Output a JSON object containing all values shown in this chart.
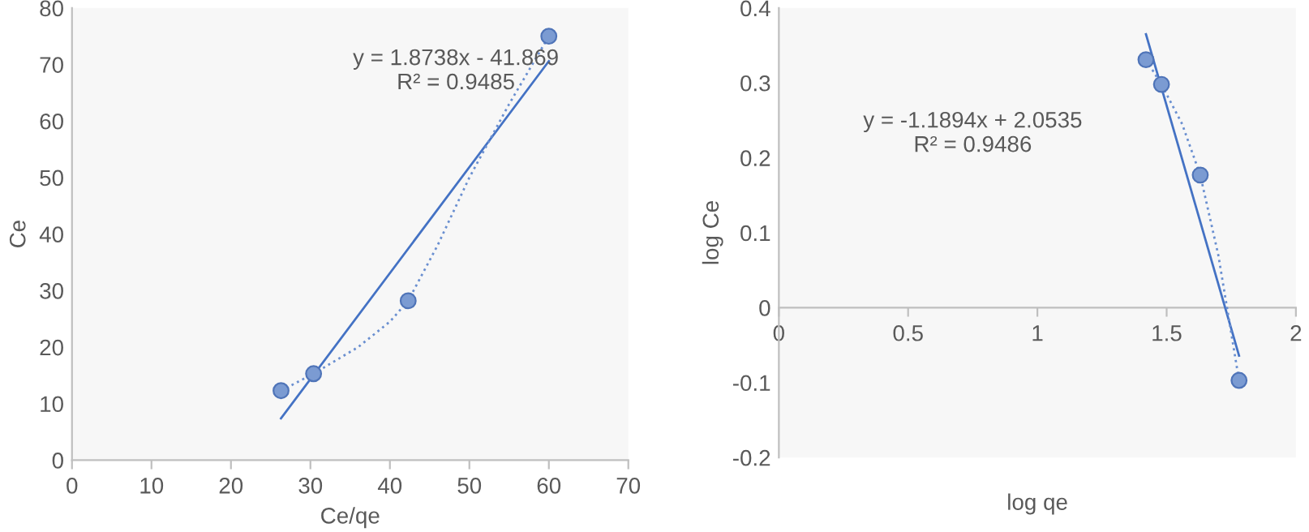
{
  "chart_data": [
    {
      "type": "scatter",
      "xlabel": "Ce/qe",
      "ylabel": "Ce",
      "xlim": [
        0,
        70
      ],
      "xticks": [
        0,
        10,
        20,
        30,
        40,
        50,
        60,
        70
      ],
      "ylim": [
        0,
        80
      ],
      "yticks": [
        0,
        10,
        20,
        30,
        40,
        50,
        60,
        70,
        80
      ],
      "grid": false,
      "legend": false,
      "annotations": [
        "y = 1.8738x - 41.869\nR² = 0.9485"
      ],
      "series": [
        {
          "marker": "circle",
          "color": "#7b9bd2",
          "x": [
            26.3,
            30.4,
            42.3,
            60
          ],
          "values": [
            12.3,
            15.3,
            28.2,
            75
          ]
        },
        {
          "type": "line",
          "line_style": "solid",
          "marker": "none",
          "color": "#4472c4",
          "x": [
            26.3,
            60
          ],
          "values": [
            7.4,
            70.6
          ]
        },
        {
          "type": "line",
          "line_style": "dotted",
          "marker": "none",
          "color": "#6a8fd0",
          "x": [
            26.3,
            30.4,
            36,
            40,
            42.3,
            46,
            50,
            55,
            60
          ],
          "values": [
            12.3,
            15.3,
            20,
            24.5,
            28.2,
            38,
            50,
            63,
            75
          ]
        }
      ]
    },
    {
      "type": "scatter",
      "xlabel": "log qe",
      "ylabel": "log Ce",
      "xlim": [
        0,
        2
      ],
      "xticks": [
        0,
        0.5,
        1,
        1.5,
        2
      ],
      "ylim": [
        -0.2,
        0.4
      ],
      "yticks": [
        -0.2,
        -0.1,
        0,
        0.1,
        0.2,
        0.3,
        0.4
      ],
      "grid": false,
      "legend": false,
      "annotations": [
        "y = -1.1894x + 2.0535\nR² = 0.9486"
      ],
      "series": [
        {
          "marker": "circle",
          "color": "#7b9bd2",
          "x": [
            1.42,
            1.48,
            1.63,
            1.78
          ],
          "values": [
            0.331,
            0.298,
            0.177,
            -0.097
          ]
        },
        {
          "type": "line",
          "line_style": "solid",
          "marker": "none",
          "color": "#4472c4",
          "x": [
            1.42,
            1.78
          ],
          "values": [
            0.365,
            -0.064
          ]
        },
        {
          "type": "line",
          "line_style": "dotted",
          "marker": "none",
          "color": "#6a8fd0",
          "x": [
            1.42,
            1.48,
            1.56,
            1.63,
            1.7,
            1.78
          ],
          "values": [
            0.331,
            0.298,
            0.245,
            0.177,
            0.07,
            -0.097
          ]
        }
      ]
    }
  ]
}
